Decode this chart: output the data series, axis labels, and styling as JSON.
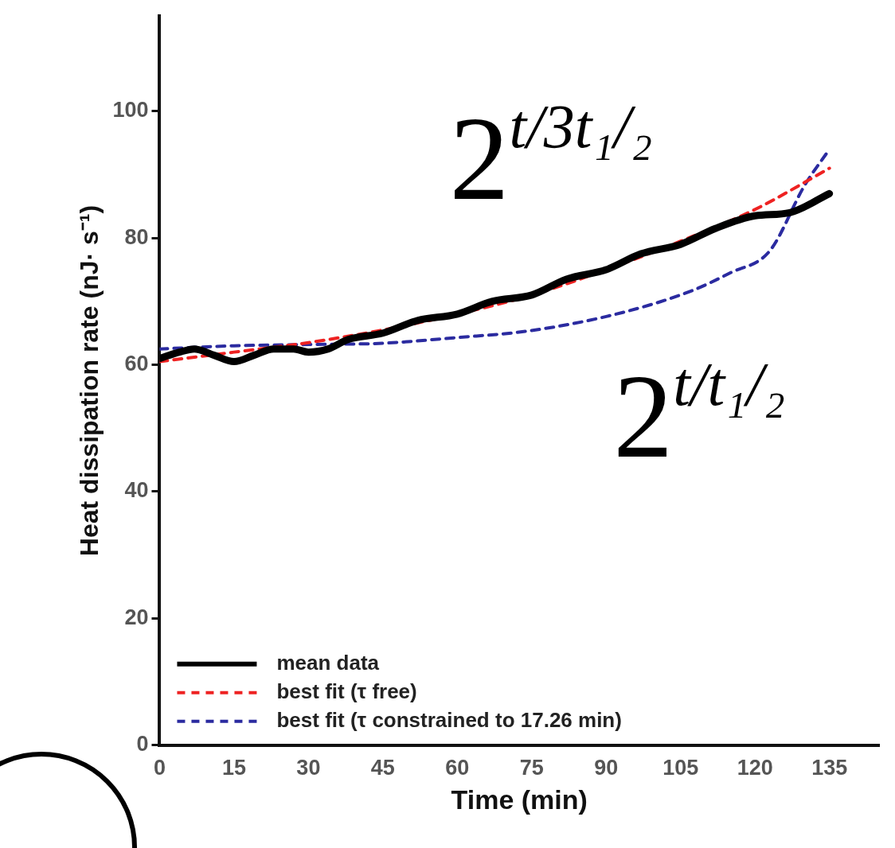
{
  "chart_data": {
    "type": "line",
    "xlabel": "Time (min)",
    "ylabel": "Heat dissipation rate (nJ· s⁻¹)",
    "xlim": [
      0,
      145
    ],
    "xticks": [
      0,
      15,
      30,
      45,
      60,
      75,
      90,
      105,
      120,
      135
    ],
    "ylim": [
      0,
      115
    ],
    "yticks": [
      0,
      20,
      40,
      60,
      80,
      100
    ],
    "grid": false,
    "legend": "bottom left",
    "marker": "none",
    "series": [
      {
        "name": "mean data",
        "color": "#000000",
        "line_style": "solid",
        "x": [
          0,
          4,
          7,
          11,
          15,
          19,
          23,
          27,
          30,
          34,
          38,
          45,
          52,
          60,
          67,
          75,
          82,
          90,
          97,
          105,
          112,
          120,
          127,
          135
        ],
        "values": [
          61,
          62,
          62.5,
          61.5,
          60.5,
          61.5,
          62.5,
          62.5,
          62,
          62.5,
          64,
          65,
          67,
          68,
          70,
          71,
          73.5,
          75,
          77.5,
          79,
          81.5,
          83.5,
          84,
          87
        ]
      },
      {
        "name": "best fit (τ free)",
        "color": "#ee2222",
        "line_style": "dashed",
        "x": [
          0,
          15,
          30,
          45,
          60,
          75,
          90,
          105,
          120,
          135
        ],
        "values": [
          60.5,
          62,
          63.5,
          65.5,
          68,
          71,
          75,
          79.5,
          84.5,
          91
        ]
      },
      {
        "name": "best fit (τ constrained to 17.26 min)",
        "color": "#2b2ba0",
        "line_style": "dashed",
        "x": [
          0,
          15,
          30,
          45,
          60,
          74,
          91,
          107,
          115,
          123,
          130,
          135
        ],
        "values": [
          62.5,
          63,
          63.2,
          63.4,
          64.3,
          65.3,
          67.8,
          71.6,
          74.5,
          78,
          88.3,
          94
        ]
      }
    ],
    "annotations": [
      "2$^{t/3t₁/₂}$",
      "2$^{t/t₁/₂}$"
    ]
  }
}
